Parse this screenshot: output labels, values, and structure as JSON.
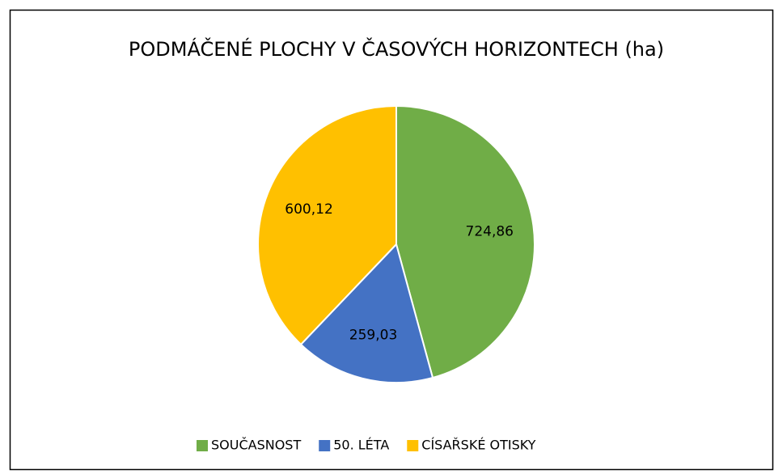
{
  "chart_data": {
    "type": "pie",
    "title": "PODMÁČENÉ PLOCHY V ČASOVÝCH HORIZONTECH (ha)",
    "categories": [
      "SOUČASNOST",
      "50. LÉTA",
      "CÍSAŘSKÉ OTISKY"
    ],
    "values": [
      724.86,
      259.03,
      600.12
    ],
    "value_labels": [
      "724,86",
      "259,03",
      "600,12"
    ],
    "colors": [
      "#70ad47",
      "#4472c4",
      "#ffc000"
    ],
    "legend": "bottom"
  }
}
